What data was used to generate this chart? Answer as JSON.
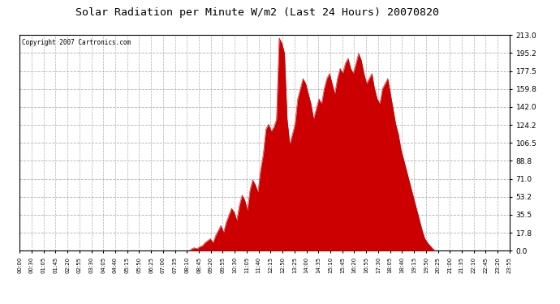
{
  "title": "Solar Radiation per Minute W/m2 (Last 24 Hours) 20070820",
  "copyright_text": "Copyright 2007 Cartronics.com",
  "background_color": "#ffffff",
  "plot_bg_color": "#ffffff",
  "bar_color": "#cc0000",
  "dashed_line_color": "#b0b0b0",
  "title_color": "#000000",
  "yticks": [
    0.0,
    17.8,
    35.5,
    53.2,
    71.0,
    88.8,
    106.5,
    124.2,
    142.0,
    159.8,
    177.5,
    195.2,
    213.0
  ],
  "ymax": 213.0,
  "ymin": 0.0,
  "time_labels": [
    "00:00",
    "00:30",
    "01:05",
    "01:45",
    "02:20",
    "02:55",
    "03:30",
    "04:05",
    "04:40",
    "05:15",
    "05:50",
    "06:25",
    "07:00",
    "07:35",
    "08:10",
    "08:45",
    "09:20",
    "09:55",
    "10:30",
    "11:05",
    "11:40",
    "12:15",
    "12:50",
    "13:25",
    "14:00",
    "14:35",
    "15:10",
    "15:45",
    "16:20",
    "16:55",
    "17:30",
    "18:05",
    "18:40",
    "19:15",
    "19:50",
    "20:25",
    "21:00",
    "21:35",
    "22:10",
    "22:45",
    "23:20",
    "23:55"
  ],
  "solar_data": [
    0,
    0,
    0,
    0,
    0,
    0,
    0,
    0,
    0,
    0,
    0,
    0,
    0,
    0,
    0,
    0,
    0,
    0,
    0,
    0,
    0,
    0,
    0,
    0,
    0,
    0,
    0,
    0,
    0,
    0,
    0,
    0,
    0,
    0,
    0,
    0,
    0,
    0,
    0,
    0,
    0,
    0,
    0,
    0,
    0,
    0,
    0,
    0,
    0,
    0,
    0,
    0,
    0,
    0,
    0,
    0,
    0,
    0,
    0,
    0,
    0,
    0,
    0,
    0,
    0,
    2,
    3,
    2,
    4,
    5,
    8,
    10,
    12,
    8,
    15,
    20,
    25,
    18,
    28,
    35,
    42,
    38,
    30,
    45,
    55,
    50,
    40,
    60,
    70,
    65,
    58,
    80,
    95,
    120,
    125,
    118,
    122,
    130,
    210,
    205,
    195,
    130,
    105,
    115,
    125,
    150,
    160,
    170,
    165,
    155,
    145,
    130,
    140,
    150,
    145,
    160,
    170,
    175,
    165,
    155,
    170,
    180,
    175,
    185,
    190,
    180,
    175,
    185,
    195,
    188,
    175,
    165,
    170,
    175,
    160,
    150,
    145,
    160,
    165,
    170,
    155,
    140,
    125,
    115,
    100,
    90,
    80,
    70,
    60,
    50,
    40,
    30,
    20,
    12,
    8,
    5,
    2,
    0,
    0,
    0,
    0,
    0,
    0,
    0,
    0,
    0,
    0,
    0,
    0,
    0,
    0,
    0,
    0,
    0,
    0,
    0,
    0,
    0,
    0,
    0,
    0,
    0,
    0,
    0,
    0,
    0
  ]
}
